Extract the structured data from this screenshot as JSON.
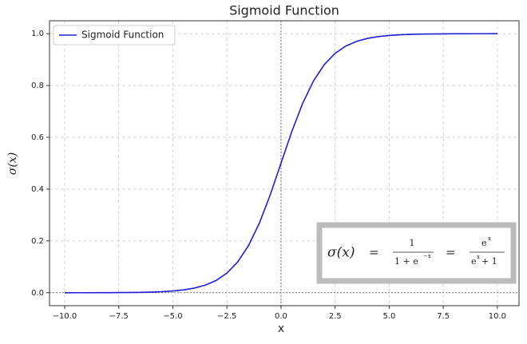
{
  "chart_data": {
    "type": "line",
    "title": "Sigmoid Function",
    "x_label": "x",
    "y_label": "σ(x)",
    "x": [
      -10,
      -9.5,
      -9,
      -8.5,
      -8,
      -7.5,
      -7,
      -6.5,
      -6,
      -5.5,
      -5,
      -4.5,
      -4,
      -3.5,
      -3,
      -2.5,
      -2,
      -1.5,
      -1,
      -0.5,
      0,
      0.5,
      1,
      1.5,
      2,
      2.5,
      3,
      3.5,
      4,
      4.5,
      5,
      5.5,
      6,
      6.5,
      7,
      7.5,
      8,
      8.5,
      9,
      9.5,
      10
    ],
    "series": [
      {
        "name": "Sigmoid Function",
        "color": "#1f1fd8",
        "values": [
          0.0,
          0.0001,
          0.0001,
          0.0002,
          0.0003,
          0.0006,
          0.0009,
          0.0015,
          0.0025,
          0.0041,
          0.0067,
          0.011,
          0.018,
          0.0293,
          0.0474,
          0.0759,
          0.1192,
          0.1824,
          0.2689,
          0.3775,
          0.5,
          0.6225,
          0.7311,
          0.8176,
          0.8808,
          0.9241,
          0.9526,
          0.9707,
          0.982,
          0.989,
          0.9933,
          0.9959,
          0.9975,
          0.9985,
          0.9991,
          0.9994,
          0.9997,
          0.9998,
          0.9999,
          0.9999,
          1.0
        ]
      }
    ],
    "xlim": [
      -10.7,
      11
    ],
    "ylim": [
      -0.05,
      1.05
    ],
    "xticks": [
      {
        "value": -10,
        "label": "−10.0"
      },
      {
        "value": -7.5,
        "label": "−7.5"
      },
      {
        "value": -5,
        "label": "−5.0"
      },
      {
        "value": -2.5,
        "label": "−2.5"
      },
      {
        "value": 0,
        "label": "0.0"
      },
      2.5,
      {
        "value": 5,
        "label": "5.0"
      },
      7.5,
      {
        "value": 10,
        "label": "10.0"
      }
    ],
    "yticks": [
      {
        "value": 0,
        "label": "0.0"
      },
      0.2,
      0.4,
      0.6,
      0.8,
      {
        "value": 1,
        "label": "1.0"
      }
    ],
    "grid": true,
    "legend": "upper left",
    "formula": {
      "lhs": "σ(x)",
      "eq1": "=",
      "num1": "1",
      "den1": "1 + e",
      "den1_exp": "−x",
      "eq2": "=",
      "num2": "e",
      "num2_exp": "x",
      "den2": "e",
      "den2_exp": "x",
      "den2_tail": "+ 1"
    }
  }
}
